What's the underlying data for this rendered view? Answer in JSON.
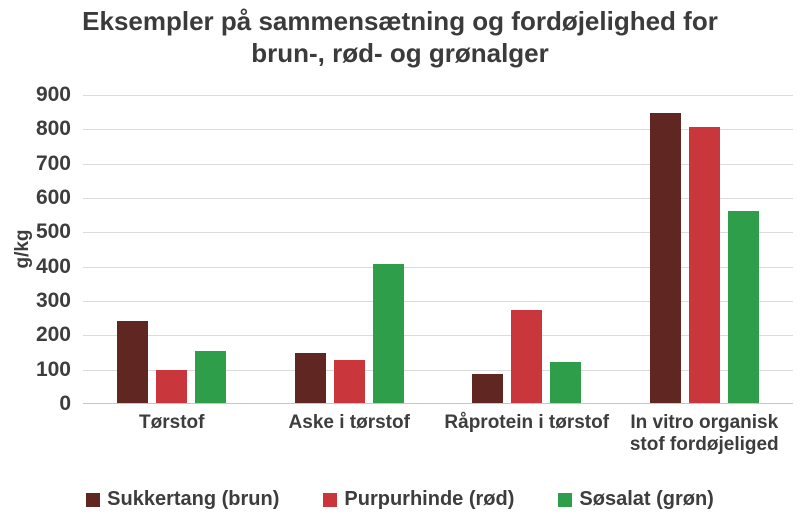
{
  "chart_data": {
    "type": "bar",
    "title": "Eksempler på sammensætning og fordøjelighed for brun-, rød- og grønalger",
    "ylabel": "g/kg",
    "ylim": [
      0,
      900
    ],
    "ytick_step": 100,
    "grid": true,
    "legend_position": "bottom",
    "categories": [
      "Tørstof",
      "Aske i tørstof",
      "Råprotein i tørstof",
      "In vitro organisk stof fordøjeliged"
    ],
    "series": [
      {
        "name": "Sukkertang (brun)",
        "color": "#602622",
        "values": [
          240,
          145,
          85,
          845
        ]
      },
      {
        "name": "Purpurhinde (rød)",
        "color": "#c9363b",
        "values": [
          95,
          125,
          270,
          805
        ]
      },
      {
        "name": "Søsalat (grøn)",
        "color": "#2f9e4a",
        "values": [
          150,
          405,
          120,
          560
        ]
      }
    ]
  }
}
